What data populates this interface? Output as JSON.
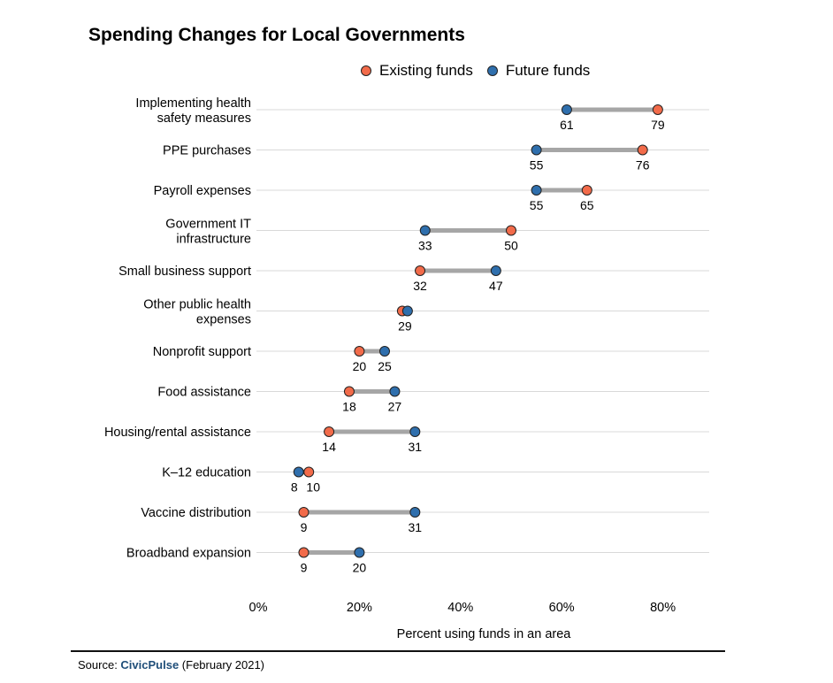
{
  "chart_data": {
    "type": "dumbbell",
    "title": "Spending Changes for Local Governments",
    "xlabel": "Percent using funds in an area",
    "xlim": [
      0,
      90
    ],
    "xticks": [
      0,
      20,
      40,
      60,
      80
    ],
    "xtick_labels": [
      "0%",
      "20%",
      "40%",
      "60%",
      "80%"
    ],
    "legend_position": "top-center",
    "series": [
      {
        "name": "Existing funds",
        "color": "#f26b4a"
      },
      {
        "name": "Future funds",
        "color": "#2f6fad"
      }
    ],
    "categories": [
      {
        "label": [
          "Implementing health",
          "safety measures"
        ],
        "existing": 79,
        "future": 61
      },
      {
        "label": [
          "PPE purchases"
        ],
        "existing": 76,
        "future": 55
      },
      {
        "label": [
          "Payroll expenses"
        ],
        "existing": 65,
        "future": 55
      },
      {
        "label": [
          "Government IT",
          "infrastructure"
        ],
        "existing": 50,
        "future": 33
      },
      {
        "label": [
          "Small business support"
        ],
        "existing": 32,
        "future": 47
      },
      {
        "label": [
          "Other public health",
          "expenses"
        ],
        "existing": 29,
        "future": 29
      },
      {
        "label": [
          "Nonprofit support"
        ],
        "existing": 20,
        "future": 25
      },
      {
        "label": [
          "Food assistance"
        ],
        "existing": 18,
        "future": 27
      },
      {
        "label": [
          "Housing/rental assistance"
        ],
        "existing": 14,
        "future": 31
      },
      {
        "label": [
          "K–12 education"
        ],
        "existing": 10,
        "future": 8
      },
      {
        "label": [
          "Vaccine distribution"
        ],
        "existing": 9,
        "future": 31
      },
      {
        "label": [
          "Broadband expansion"
        ],
        "existing": 9,
        "future": 20
      }
    ],
    "connector_color": "#a6a6a6",
    "gridline_color": "#d9d9d9"
  },
  "source": {
    "prefix": "Source: ",
    "brand": "CivicPulse",
    "suffix": " (February 2021)"
  }
}
